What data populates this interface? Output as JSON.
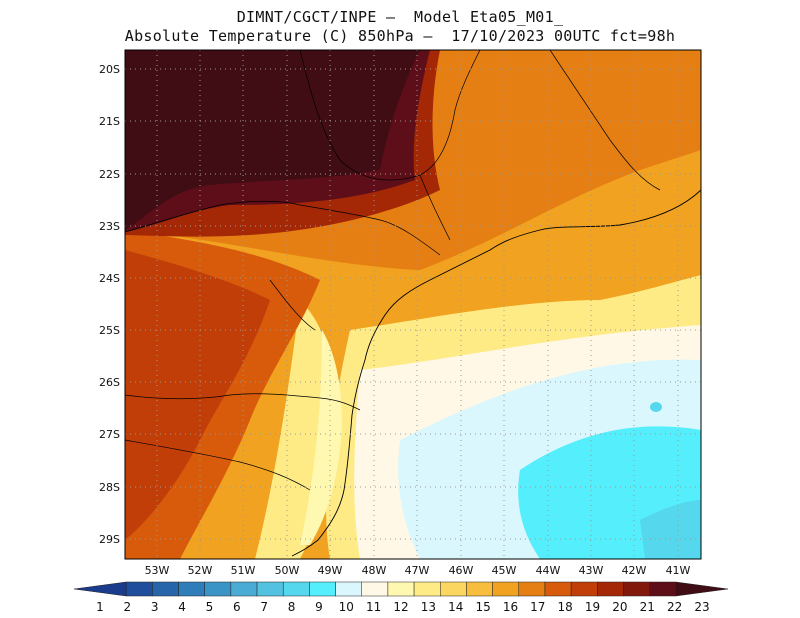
{
  "title_line1": "DIMNT/CGCT/INPE –  Model Eta05_M01_",
  "title_line2": "Absolute Temperature (C) 850hPa –  17/10/2023 00UTC fct=98h",
  "lat_labels": [
    "20S",
    "21S",
    "22S",
    "23S",
    "24S",
    "25S",
    "26S",
    "27S",
    "28S",
    "29S"
  ],
  "lon_labels": [
    "53W",
    "52W",
    "51W",
    "50W",
    "49W",
    "48W",
    "47W",
    "46W",
    "45W",
    "44W",
    "43W",
    "42W",
    "41W"
  ],
  "colorbar": {
    "labels": [
      "1",
      "2",
      "3",
      "4",
      "5",
      "6",
      "7",
      "8",
      "9",
      "10",
      "11",
      "12",
      "13",
      "14",
      "15",
      "16",
      "17",
      "18",
      "19",
      "20",
      "21",
      "22",
      "23"
    ],
    "colors": [
      "#1b3c8c",
      "#1f4f9c",
      "#2665aa",
      "#2e7cb8",
      "#3a94c6",
      "#4aacd4",
      "#52c2e0",
      "#55d8ee",
      "#55eefc",
      "#d9f7fc",
      "#fff8e6",
      "#fff8b0",
      "#ffeb85",
      "#fbd660",
      "#f6be3c",
      "#f0a220",
      "#e57f13",
      "#d75b0b",
      "#c23e08",
      "#a42806",
      "#82180c",
      "#5e0e18",
      "#410d14"
    ]
  }
}
